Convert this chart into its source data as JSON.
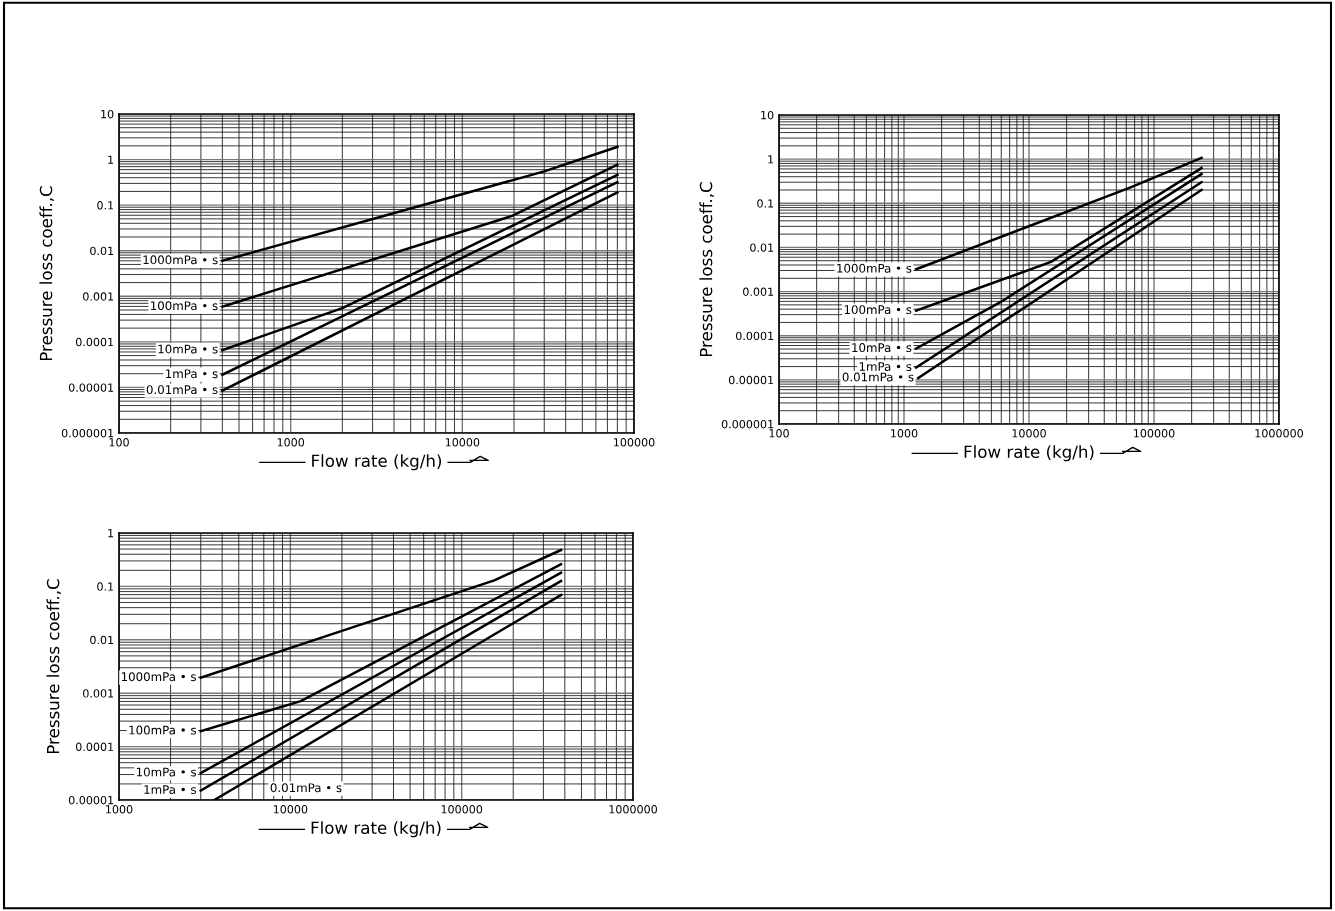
{
  "chart_data": [
    {
      "type": "line",
      "xlabel": "Flow rate (kg/h)",
      "ylabel": "Pressure loss coeff.,C",
      "log": "xy",
      "grid": true,
      "legend": false,
      "xlim": [
        100,
        100000
      ],
      "xticks": [
        100,
        1000,
        10000,
        100000
      ],
      "ylim": [
        1e-06,
        10
      ],
      "yticks": [
        {
          "value": 1e-06,
          "label": "0.000001"
        },
        {
          "value": 1e-05,
          "label": "0.00001"
        },
        {
          "value": 0.0001,
          "label": "0.0001"
        },
        {
          "value": 0.001,
          "label": "0.001"
        },
        {
          "value": 0.01,
          "label": "0.01"
        },
        {
          "value": 0.1,
          "label": "0.1"
        },
        {
          "value": 1,
          "label": "1"
        },
        {
          "value": 10,
          "label": "10"
        }
      ],
      "series": [
        {
          "name": "1000mPa • s",
          "color": "#000000",
          "x": [
            400,
            30000,
            80000
          ],
          "values": [
            0.006,
            0.55,
            1.9
          ]
        },
        {
          "name": "100mPa • s",
          "color": "#000000",
          "x": [
            400,
            19500,
            80000
          ],
          "values": [
            0.00059,
            0.058,
            0.77
          ]
        },
        {
          "name": "10mPa • s",
          "color": "#000000",
          "x": [
            400,
            2000,
            80000
          ],
          "values": [
            6.6e-05,
            0.00055,
            0.46
          ]
        },
        {
          "name": "1mPa • s",
          "color": "#000000",
          "x": [
            400,
            80000
          ],
          "values": [
            1.9e-05,
            0.32
          ]
        },
        {
          "name": "0.01mPa • s",
          "color": "#000000",
          "x": [
            400,
            80000
          ],
          "values": [
            8.5e-06,
            0.19
          ]
        }
      ]
    },
    {
      "type": "line",
      "xlabel": "Flow rate (kg/h)",
      "ylabel": "Pressure loss coeff.,C",
      "log": "xy",
      "grid": true,
      "legend": false,
      "xlim": [
        100,
        1000000
      ],
      "xticks": [
        100,
        1000,
        10000,
        100000,
        1000000
      ],
      "ylim": [
        1e-06,
        10
      ],
      "yticks": [
        {
          "value": 1e-06,
          "label": "0.000001"
        },
        {
          "value": 1e-05,
          "label": "0.00001"
        },
        {
          "value": 0.0001,
          "label": "0.0001"
        },
        {
          "value": 0.001,
          "label": "0.001"
        },
        {
          "value": 0.01,
          "label": "0.01"
        },
        {
          "value": 0.1,
          "label": "0.1"
        },
        {
          "value": 1,
          "label": "1"
        },
        {
          "value": 10,
          "label": "10"
        }
      ],
      "series": [
        {
          "name": "1000mPa • s",
          "color": "#000000",
          "x": [
            1250,
            65000,
            240000
          ],
          "values": [
            0.0032,
            0.23,
            1.07
          ]
        },
        {
          "name": "100mPa • s",
          "color": "#000000",
          "x": [
            1250,
            15000,
            240000
          ],
          "values": [
            0.00037,
            0.0047,
            0.63
          ]
        },
        {
          "name": "10mPa • s",
          "color": "#000000",
          "x": [
            1250,
            6000,
            240000
          ],
          "values": [
            5.1e-05,
            0.00059,
            0.46
          ]
        },
        {
          "name": "1mPa • s",
          "color": "#000000",
          "x": [
            1250,
            240000
          ],
          "values": [
            1.9e-05,
            0.3
          ]
        },
        {
          "name": "0.01mPa • s",
          "color": "#000000",
          "x": [
            1300,
            240000
          ],
          "values": [
            1.1e-05,
            0.2
          ]
        }
      ]
    },
    {
      "type": "line",
      "xlabel": "Flow rate (kg/h)",
      "ylabel": "Pressure loss coeff.,C",
      "log": "xy",
      "grid": true,
      "legend": false,
      "xlim": [
        1000,
        1000000
      ],
      "xticks": [
        1000,
        10000,
        100000,
        1000000
      ],
      "ylim": [
        1e-05,
        1
      ],
      "yticks": [
        {
          "value": 1e-05,
          "label": "0.00001"
        },
        {
          "value": 0.0001,
          "label": "0.0001"
        },
        {
          "value": 0.001,
          "label": "0.001"
        },
        {
          "value": 0.01,
          "label": "0.01"
        },
        {
          "value": 0.1,
          "label": "0.1"
        },
        {
          "value": 1,
          "label": "1"
        }
      ],
      "series": [
        {
          "name": "1000mPa • s",
          "color": "#000000",
          "x": [
            3000,
            155000,
            380000
          ],
          "values": [
            0.00195,
            0.13,
            0.48
          ]
        },
        {
          "name": "100mPa • s",
          "color": "#000000",
          "x": [
            3000,
            11500,
            380000
          ],
          "values": [
            0.000195,
            0.00071,
            0.26
          ]
        },
        {
          "name": "10mPa • s",
          "color": "#000000",
          "x": [
            3000,
            380000
          ],
          "values": [
            3.2e-05,
            0.18
          ]
        },
        {
          "name": "1mPa • s",
          "color": "#000000",
          "x": [
            3000,
            380000
          ],
          "values": [
            1.5e-05,
            0.126
          ]
        },
        {
          "name": "0.01mPa • s",
          "color": "#000000",
          "x": [
            3600,
            380000
          ],
          "values": [
            1e-05,
            0.069
          ]
        }
      ]
    }
  ]
}
